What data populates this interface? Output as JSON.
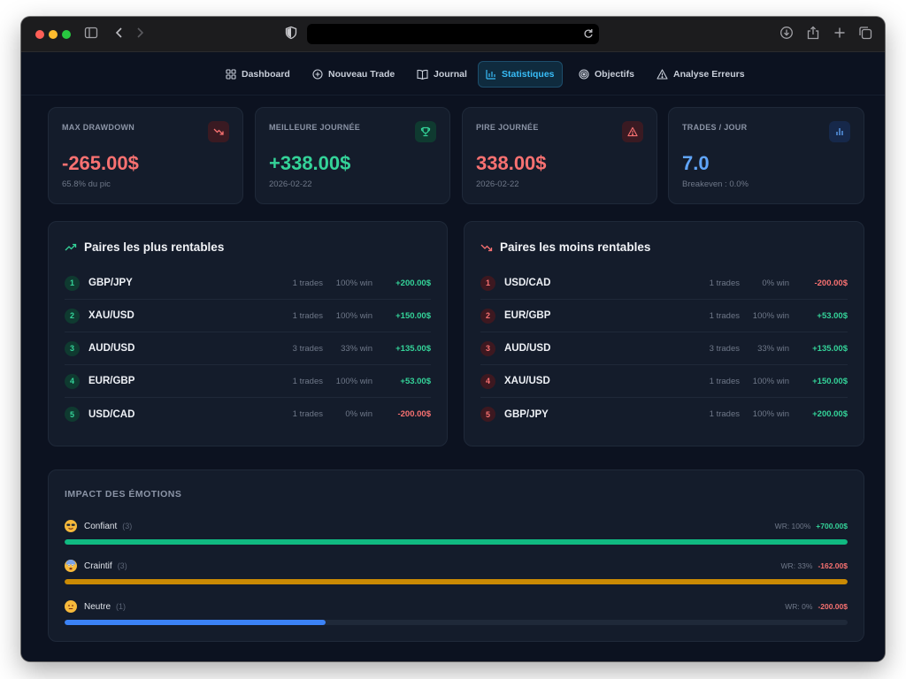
{
  "nav": [
    {
      "label": "Dashboard",
      "icon": "grid-icon",
      "active": false
    },
    {
      "label": "Nouveau Trade",
      "icon": "plus-circle-icon",
      "active": false
    },
    {
      "label": "Journal",
      "icon": "book-icon",
      "active": false
    },
    {
      "label": "Statistiques",
      "icon": "bar-chart-icon",
      "active": true
    },
    {
      "label": "Objectifs",
      "icon": "target-icon",
      "active": false
    },
    {
      "label": "Analyse Erreurs",
      "icon": "warning-icon",
      "active": false
    }
  ],
  "stats": [
    {
      "label": "MAX DRAWDOWN",
      "value": "-265.00$",
      "sub": "65.8% du pic",
      "icon": "trend-down-icon",
      "color": "#f87171"
    },
    {
      "label": "MEILLEURE JOURNÉE",
      "value": "+338.00$",
      "sub": "2026-02-22",
      "icon": "trophy-icon",
      "color": "#34d399"
    },
    {
      "label": "PIRE JOURNÉE",
      "value": "338.00$",
      "sub": "2026-02-22",
      "icon": "warning-icon",
      "color": "#f87171"
    },
    {
      "label": "TRADES / JOUR",
      "value": "7.0",
      "sub": "Breakeven : 0.0%",
      "icon": "bar-chart-icon",
      "color": "#60a5fa"
    }
  ],
  "best_pairs": {
    "title": "Paires les plus rentables",
    "rows": [
      {
        "rank": "1",
        "pair": "GBP/JPY",
        "trades": "1 trades",
        "win": "100% win",
        "pnl": "+200.00$"
      },
      {
        "rank": "2",
        "pair": "XAU/USD",
        "trades": "1 trades",
        "win": "100% win",
        "pnl": "+150.00$"
      },
      {
        "rank": "3",
        "pair": "AUD/USD",
        "trades": "3 trades",
        "win": "33% win",
        "pnl": "+135.00$"
      },
      {
        "rank": "4",
        "pair": "EUR/GBP",
        "trades": "1 trades",
        "win": "100% win",
        "pnl": "+53.00$"
      },
      {
        "rank": "5",
        "pair": "USD/CAD",
        "trades": "1 trades",
        "win": "0% win",
        "pnl": "-200.00$"
      }
    ]
  },
  "worst_pairs": {
    "title": "Paires les moins rentables",
    "rows": [
      {
        "rank": "1",
        "pair": "USD/CAD",
        "trades": "1 trades",
        "win": "0% win",
        "pnl": "-200.00$"
      },
      {
        "rank": "2",
        "pair": "EUR/GBP",
        "trades": "1 trades",
        "win": "100% win",
        "pnl": "+53.00$"
      },
      {
        "rank": "3",
        "pair": "AUD/USD",
        "trades": "3 trades",
        "win": "33% win",
        "pnl": "+135.00$"
      },
      {
        "rank": "4",
        "pair": "XAU/USD",
        "trades": "1 trades",
        "win": "100% win",
        "pnl": "+150.00$"
      },
      {
        "rank": "5",
        "pair": "GBP/JPY",
        "trades": "1 trades",
        "win": "100% win",
        "pnl": "+200.00$"
      }
    ]
  },
  "emotions": {
    "title": "IMPACT DES ÉMOTIONS",
    "rows": [
      {
        "name": "Confiant",
        "count": "(3)",
        "wr": "WR: 100%",
        "pnl": "+700.00$",
        "fill": 1.0,
        "color": "#10b981",
        "emoji": "smiling-face-with-sunglasses-icon"
      },
      {
        "name": "Craintif",
        "count": "(3)",
        "wr": "WR: 33%",
        "pnl": "-162.00$",
        "fill": 1.0,
        "color": "#ca8a04",
        "emoji": "fearful-face-icon"
      },
      {
        "name": "Neutre",
        "count": "(1)",
        "wr": "WR: 0%",
        "pnl": "-200.00$",
        "fill": 0.333,
        "color": "#3b82f6",
        "emoji": "neutral-face-icon"
      }
    ]
  }
}
